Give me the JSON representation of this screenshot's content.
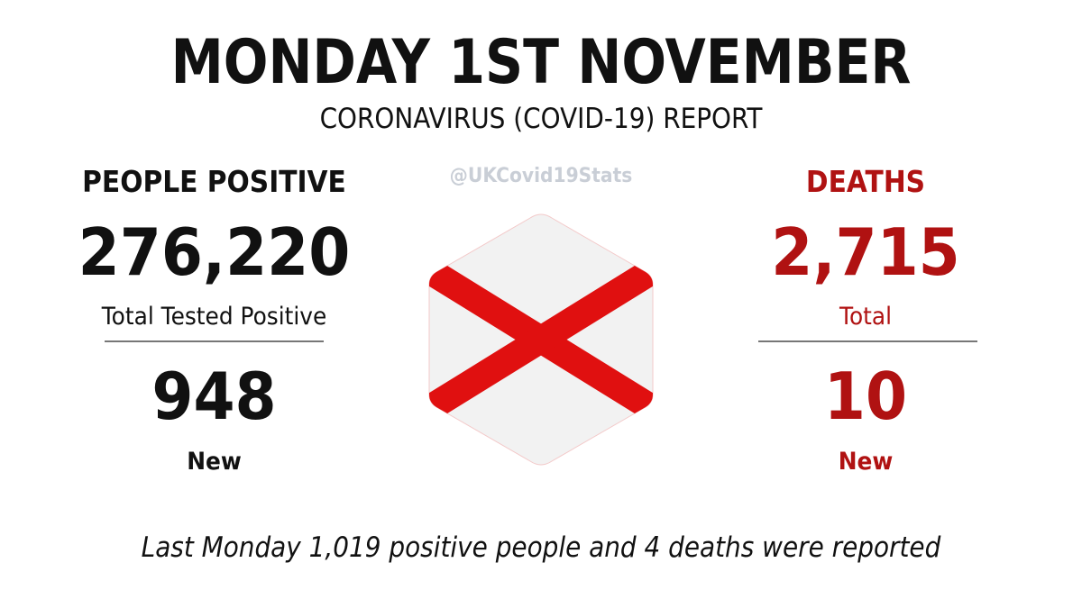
{
  "header": {
    "date_title": "MONDAY 1ST NOVEMBER",
    "subtitle": "CORONAVIRUS (COVID-19) REPORT"
  },
  "handle": "@UKCovid19Stats",
  "positive": {
    "heading": "PEOPLE POSITIVE",
    "total": "276,220",
    "total_label": "Total Tested Positive",
    "new": "948",
    "new_label": "New"
  },
  "deaths": {
    "heading": "DEATHS",
    "total": "2,715",
    "total_label": "Total",
    "new": "10",
    "new_label": "New"
  },
  "footer": {
    "note": "Last Monday 1,019 positive people and 4 deaths were reported"
  },
  "emblem": {
    "icon": "saltire-flag-icon",
    "background_color": "#f2f2f2",
    "cross_color": "#e01010"
  },
  "colors": {
    "text": "#111111",
    "deaths_accent": "#b01212",
    "handle": "#c9ced6",
    "divider": "#777777"
  }
}
